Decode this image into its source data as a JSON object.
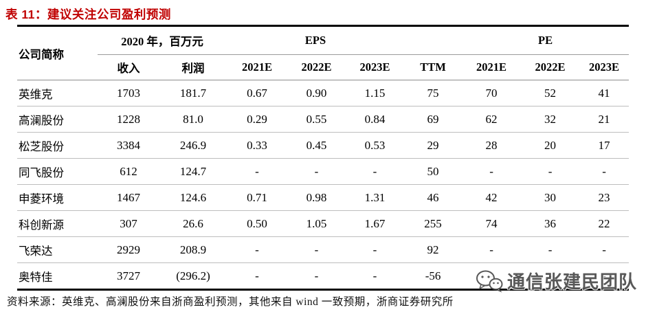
{
  "title": "表 11：建议关注公司盈利预测",
  "table": {
    "header": {
      "company": "公司简称",
      "group_2020": "2020 年，百万元",
      "group_eps": "EPS",
      "group_ttm": "",
      "group_pe": "PE",
      "sub": [
        "收入",
        "利润",
        "2021E",
        "2022E",
        "2023E",
        "TTM",
        "2021E",
        "2022E",
        "2023E"
      ]
    },
    "rows": [
      {
        "company": "英维克",
        "values": [
          "1703",
          "181.7",
          "0.67",
          "0.90",
          "1.15",
          "75",
          "70",
          "52",
          "41"
        ]
      },
      {
        "company": "高澜股份",
        "values": [
          "1228",
          "81.0",
          "0.29",
          "0.55",
          "0.84",
          "69",
          "62",
          "32",
          "21"
        ]
      },
      {
        "company": "松芝股份",
        "values": [
          "3384",
          "246.9",
          "0.33",
          "0.45",
          "0.53",
          "29",
          "28",
          "20",
          "17"
        ]
      },
      {
        "company": "同飞股份",
        "values": [
          "612",
          "124.7",
          "-",
          "-",
          "-",
          "50",
          "-",
          "-",
          "-"
        ]
      },
      {
        "company": "申菱环境",
        "values": [
          "1467",
          "124.6",
          "0.71",
          "0.98",
          "1.31",
          "46",
          "42",
          "30",
          "23"
        ]
      },
      {
        "company": "科创新源",
        "values": [
          "307",
          "26.6",
          "0.50",
          "1.05",
          "1.67",
          "255",
          "74",
          "36",
          "22"
        ]
      },
      {
        "company": "飞荣达",
        "values": [
          "2929",
          "208.9",
          "-",
          "-",
          "-",
          "92",
          "-",
          "-",
          "-"
        ]
      },
      {
        "company": "奥特佳",
        "values": [
          "3727",
          "(296.2)",
          "-",
          "-",
          "-",
          "-56",
          "-",
          "-",
          "-"
        ]
      }
    ]
  },
  "footer": {
    "source": "资料来源：英维克、高澜股份来自浙商盈利预测，其他来自 wind 一致预期，浙商证券研究所"
  },
  "watermark": {
    "text": "通信张建民团队",
    "icon": "wechat-icon"
  },
  "colors": {
    "title_red": "#c00000",
    "rule_black": "#000000",
    "row_separator_gray": "#bdbdbd",
    "header_rule_gray": "#8c8c8c",
    "watermark_gray": "#4a4a4a"
  }
}
